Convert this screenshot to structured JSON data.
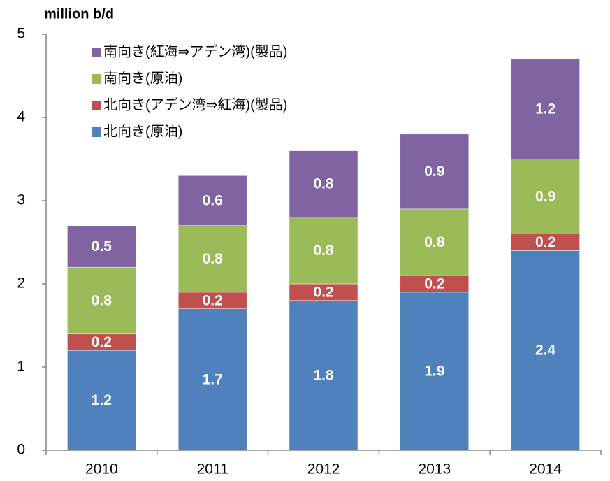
{
  "chart_data": {
    "type": "stacked_bar",
    "y_axis_label": "million b/d",
    "categories": [
      "2010",
      "2011",
      "2012",
      "2013",
      "2014"
    ],
    "series": [
      {
        "name": "北向き(原油)",
        "color": "#4f81bd",
        "values": [
          1.2,
          1.7,
          1.8,
          1.9,
          2.4
        ]
      },
      {
        "name": "北向き(アデン湾⇒紅海)(製品)",
        "color": "#c0504d",
        "values": [
          0.2,
          0.2,
          0.2,
          0.2,
          0.2
        ]
      },
      {
        "name": "南向き(原油)",
        "color": "#9bbb59",
        "values": [
          0.8,
          0.8,
          0.8,
          0.8,
          0.9
        ]
      },
      {
        "name": "南向き(紅海⇒アデン湾)(製品)",
        "color": "#8064a2",
        "values": [
          0.5,
          0.6,
          0.8,
          0.9,
          1.2
        ]
      }
    ],
    "ylim": [
      0,
      5
    ],
    "yticks": [
      0,
      1,
      2,
      3,
      4,
      5
    ],
    "grid": false,
    "legend": "top-left"
  }
}
